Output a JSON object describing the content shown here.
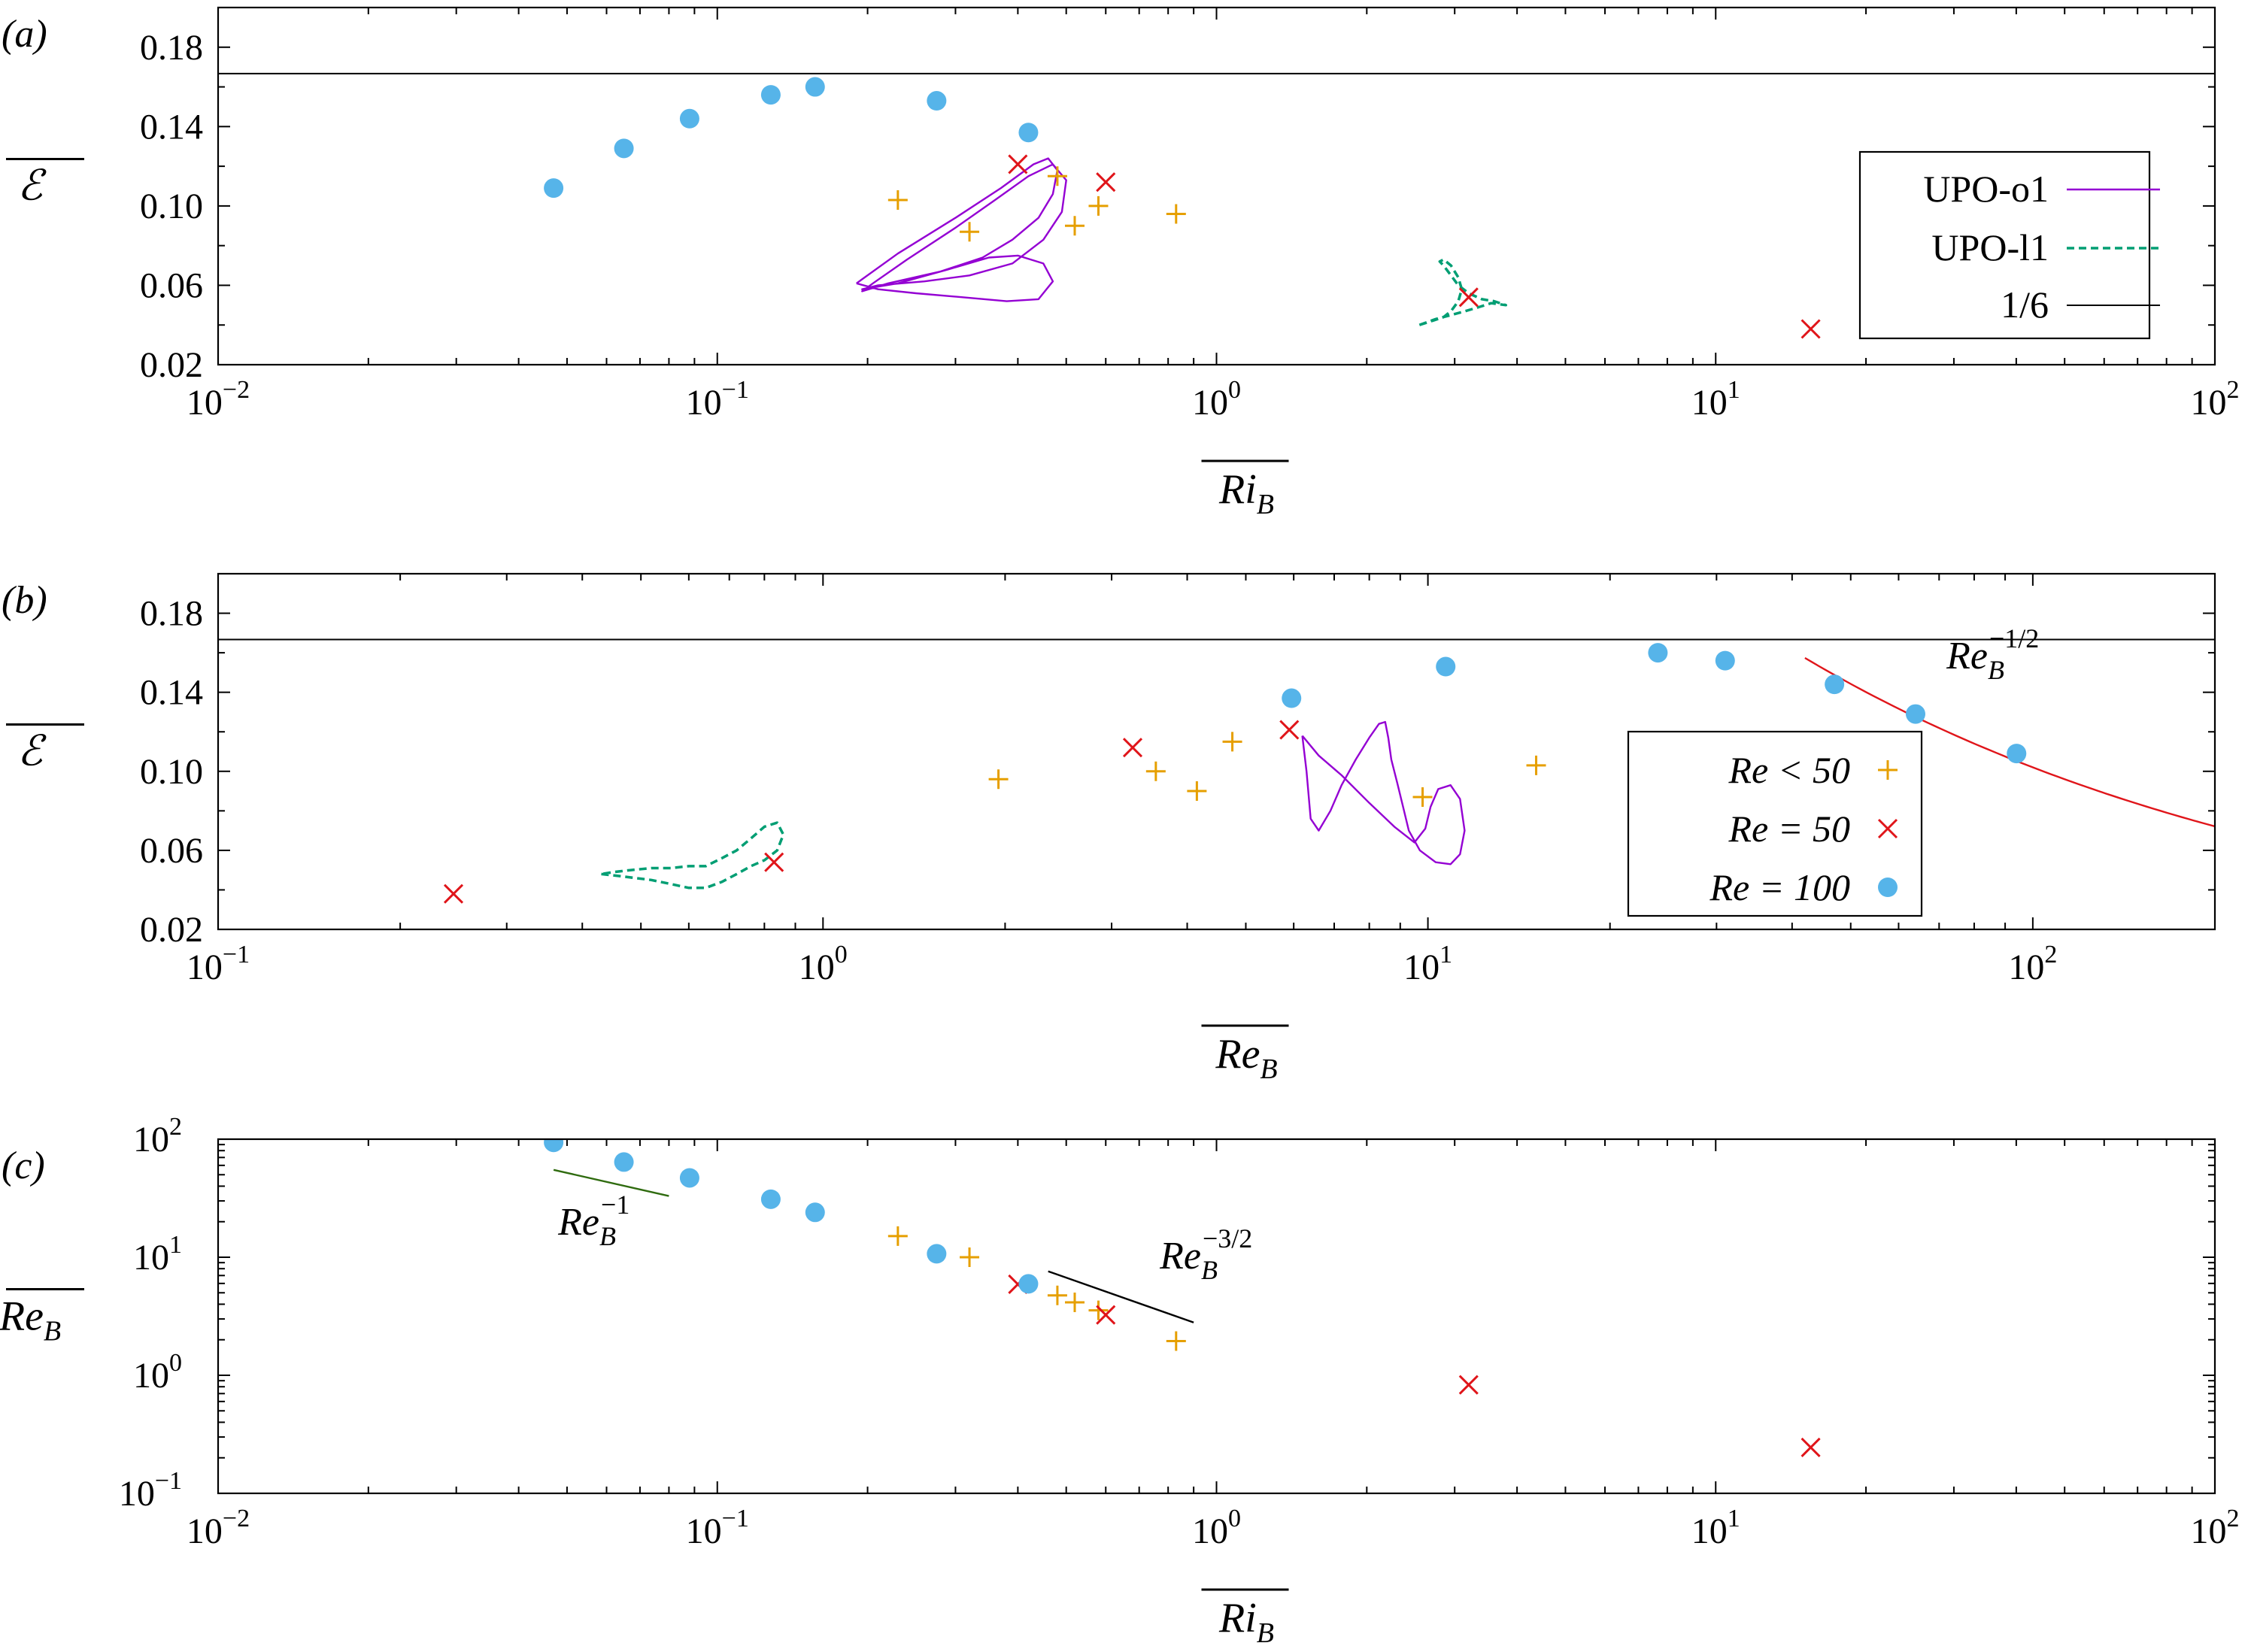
{
  "colors": {
    "plus": "#e69f00",
    "cross": "#e0151a",
    "dot": "#56b4e9",
    "upo_o1": "#9400d3",
    "upo_l1": "#009e73",
    "green_line": "#2f6b0f",
    "black": "#000000",
    "red_line": "#e0151a"
  },
  "chart_data": [
    {
      "panel": "(a)",
      "type": "scatter",
      "xscale": "log",
      "xlim": [
        0.01,
        100
      ],
      "ylim": [
        0.02,
        0.2
      ],
      "yticks": [
        0.02,
        0.06,
        0.1,
        0.14,
        0.18
      ],
      "ytick_labels": [
        "0.02",
        "0.06",
        "0.10",
        "0.14",
        "0.18"
      ],
      "xticks": [
        0.01,
        0.1,
        1,
        10,
        100
      ],
      "xtick_labels": [
        [
          "10",
          "−2"
        ],
        [
          "10",
          "−1"
        ],
        [
          "10",
          "0"
        ],
        [
          "10",
          "1"
        ],
        [
          "10",
          "2"
        ]
      ],
      "xlabel": "Ri",
      "xlabel_sub": "B",
      "ylabel": "ℰ",
      "hline": 0.1667,
      "series": [
        {
          "name": "Re < 50",
          "marker": "plus",
          "x": [
            0.23,
            0.32,
            0.48,
            0.52,
            0.58,
            0.83
          ],
          "y": [
            0.103,
            0.087,
            0.115,
            0.09,
            0.1,
            0.096
          ]
        },
        {
          "name": "Re = 50",
          "marker": "cross",
          "x": [
            0.4,
            0.6,
            3.2,
            15.5
          ],
          "y": [
            0.121,
            0.112,
            0.054,
            0.038
          ]
        },
        {
          "name": "Re = 100",
          "marker": "dot",
          "x": [
            0.047,
            0.065,
            0.088,
            0.128,
            0.157,
            0.275,
            0.42
          ],
          "y": [
            0.109,
            0.129,
            0.144,
            0.156,
            0.16,
            0.153,
            0.137
          ]
        }
      ],
      "curves": [
        {
          "name": "UPO-o1",
          "style": "solid",
          "color_key": "upo_o1",
          "x": [
            0.19,
            0.23,
            0.3,
            0.37,
            0.43,
            0.46,
            0.48,
            0.47,
            0.44,
            0.39,
            0.34,
            0.28,
            0.22,
            0.195,
            0.205,
            0.24,
            0.3,
            0.36,
            0.42,
            0.47,
            0.5,
            0.49,
            0.45,
            0.39,
            0.32,
            0.26,
            0.21,
            0.195,
            0.23,
            0.29,
            0.35,
            0.4,
            0.45,
            0.47,
            0.44,
            0.38,
            0.31,
            0.25,
            0.21,
            0.19
          ],
          "y": [
            0.061,
            0.076,
            0.094,
            0.109,
            0.121,
            0.124,
            0.118,
            0.106,
            0.094,
            0.083,
            0.074,
            0.067,
            0.061,
            0.057,
            0.061,
            0.073,
            0.089,
            0.103,
            0.115,
            0.121,
            0.113,
            0.097,
            0.083,
            0.071,
            0.065,
            0.062,
            0.06,
            0.058,
            0.061,
            0.068,
            0.074,
            0.075,
            0.071,
            0.062,
            0.053,
            0.052,
            0.054,
            0.056,
            0.058,
            0.061
          ]
        },
        {
          "name": "UPO-l1",
          "style": "dashed",
          "color_key": "upo_l1",
          "x": [
            2.55,
            2.75,
            2.95,
            3.15,
            3.35,
            3.55,
            3.8,
            3.6,
            3.4,
            3.2,
            3.05,
            2.95,
            2.85,
            2.8,
            2.85,
            2.95,
            3.05,
            3.1,
            3.05,
            2.95,
            2.85,
            2.7,
            2.55
          ],
          "y": [
            0.04,
            0.043,
            0.045,
            0.047,
            0.049,
            0.051,
            0.05,
            0.052,
            0.053,
            0.056,
            0.06,
            0.065,
            0.07,
            0.072,
            0.073,
            0.07,
            0.064,
            0.058,
            0.052,
            0.047,
            0.044,
            0.042,
            0.04
          ]
        }
      ],
      "legend": [
        "UPO-o1",
        "UPO-l1",
        "1/6"
      ]
    },
    {
      "panel": "(b)",
      "type": "scatter",
      "xscale": "log",
      "xlim": [
        0.1,
        200
      ],
      "ylim": [
        0.02,
        0.2
      ],
      "yticks": [
        0.02,
        0.06,
        0.1,
        0.14,
        0.18
      ],
      "ytick_labels": [
        "0.02",
        "0.06",
        "0.10",
        "0.14",
        "0.18"
      ],
      "xticks": [
        0.1,
        1,
        10,
        100
      ],
      "xtick_labels": [
        [
          "10",
          "−1"
        ],
        [
          "10",
          "0"
        ],
        [
          "10",
          "1"
        ],
        [
          "10",
          "2"
        ]
      ],
      "xlabel": "Re",
      "xlabel_sub": "B",
      "ylabel": "ℰ",
      "hline": 0.1667,
      "series": [
        {
          "name": "Re < 50",
          "marker": "plus",
          "x": [
            1.95,
            3.55,
            4.15,
            4.75,
            9.8,
            15.1
          ],
          "y": [
            0.096,
            0.1,
            0.09,
            0.115,
            0.087,
            0.103
          ]
        },
        {
          "name": "Re = 50",
          "marker": "cross",
          "x": [
            0.245,
            0.83,
            3.25,
            5.9
          ],
          "y": [
            0.038,
            0.054,
            0.112,
            0.121
          ]
        },
        {
          "name": "Re = 100",
          "marker": "dot",
          "x": [
            5.95,
            10.7,
            24.0,
            31.0,
            47.0,
            64.0,
            94.0
          ],
          "y": [
            0.137,
            0.153,
            0.16,
            0.156,
            0.144,
            0.129,
            0.109
          ]
        }
      ],
      "curves": [
        {
          "name": "UPO-l1",
          "style": "dashed",
          "color_key": "upo_l1",
          "x": [
            0.43,
            0.46,
            0.49,
            0.52,
            0.56,
            0.6,
            0.64,
            0.68,
            0.72,
            0.76,
            0.8,
            0.84,
            0.86,
            0.84,
            0.8,
            0.76,
            0.72,
            0.68,
            0.64,
            0.6,
            0.56,
            0.52,
            0.48,
            0.45,
            0.43
          ],
          "y": [
            0.048,
            0.047,
            0.046,
            0.045,
            0.043,
            0.041,
            0.041,
            0.044,
            0.048,
            0.052,
            0.055,
            0.06,
            0.068,
            0.074,
            0.072,
            0.066,
            0.06,
            0.056,
            0.052,
            0.052,
            0.051,
            0.051,
            0.05,
            0.049,
            0.048
          ]
        },
        {
          "name": "UPO-o1",
          "style": "solid",
          "color_key": "upo_o1",
          "x": [
            6.2,
            6.6,
            7.2,
            8.0,
            8.8,
            9.5,
            9.9,
            10.1,
            10.4,
            10.9,
            11.3,
            11.5,
            11.3,
            10.9,
            10.3,
            9.7,
            9.3,
            9.1,
            8.9,
            8.7,
            8.6,
            8.5,
            8.3,
            8.0,
            7.6,
            7.2,
            6.9,
            6.6,
            6.4,
            6.3,
            6.2
          ],
          "y": [
            0.118,
            0.108,
            0.098,
            0.084,
            0.072,
            0.064,
            0.071,
            0.082,
            0.091,
            0.093,
            0.086,
            0.07,
            0.058,
            0.053,
            0.054,
            0.06,
            0.07,
            0.082,
            0.094,
            0.106,
            0.117,
            0.125,
            0.124,
            0.117,
            0.106,
            0.093,
            0.08,
            0.07,
            0.076,
            0.1,
            0.118
          ]
        },
        {
          "name": "Re_B^{-1/2}",
          "style": "solid",
          "color_key": "red_line",
          "fit": "power",
          "coef": 1.02,
          "exp": -0.5,
          "xrange": [
            42,
            200
          ]
        }
      ],
      "annotations": [
        {
          "text": "Re",
          "sub": "B",
          "sup": "−1/2",
          "x": 72,
          "y": 0.152
        }
      ],
      "legend": [
        "Re < 50",
        "Re = 50",
        "Re = 100"
      ]
    },
    {
      "panel": "(c)",
      "type": "scatter",
      "xscale": "log",
      "yscale": "log",
      "xlim": [
        0.01,
        100
      ],
      "ylim": [
        0.1,
        100
      ],
      "xticks": [
        0.01,
        0.1,
        1,
        10,
        100
      ],
      "xtick_labels": [
        [
          "10",
          "−2"
        ],
        [
          "10",
          "−1"
        ],
        [
          "10",
          "0"
        ],
        [
          "10",
          "1"
        ],
        [
          "10",
          "2"
        ]
      ],
      "yticks": [
        0.1,
        1,
        10,
        100
      ],
      "ytick_labels": [
        [
          "10",
          "−1"
        ],
        [
          "10",
          "0"
        ],
        [
          "10",
          "1"
        ],
        [
          "10",
          "2"
        ]
      ],
      "xlabel": "Ri",
      "xlabel_sub": "B",
      "ylabel": "Re",
      "ylabel_sub": "B",
      "series": [
        {
          "name": "Re < 50",
          "marker": "plus",
          "x": [
            0.23,
            0.32,
            0.48,
            0.52,
            0.58,
            0.83
          ],
          "y": [
            15.1,
            10.0,
            4.75,
            4.15,
            3.55,
            1.95
          ]
        },
        {
          "name": "Re = 50",
          "marker": "cross",
          "x": [
            0.4,
            0.6,
            3.2,
            15.5
          ],
          "y": [
            5.9,
            3.25,
            0.83,
            0.245
          ]
        },
        {
          "name": "Re = 100",
          "marker": "dot",
          "x": [
            0.047,
            0.065,
            0.088,
            0.128,
            0.157,
            0.275,
            0.42
          ],
          "y": [
            94.0,
            64.0,
            47.0,
            31.0,
            24.0,
            10.7,
            5.95
          ]
        }
      ],
      "curves": [
        {
          "name": "Re_B^{-1}",
          "style": "solid",
          "color_key": "green_line",
          "x": [
            0.047,
            0.08
          ],
          "y": [
            55,
            33
          ]
        },
        {
          "name": "Re_B^{-3/2}",
          "style": "solid",
          "color_key": "black",
          "x": [
            0.46,
            0.9
          ],
          "y": [
            7.6,
            2.8
          ]
        }
      ],
      "annotations": [
        {
          "text": "Re",
          "sub": "B",
          "sup": "−1",
          "x": 0.048,
          "y": 15.5
        },
        {
          "text": "Re",
          "sub": "B",
          "sup": "−3/2",
          "x": 0.77,
          "y": 8.0
        }
      ]
    }
  ]
}
